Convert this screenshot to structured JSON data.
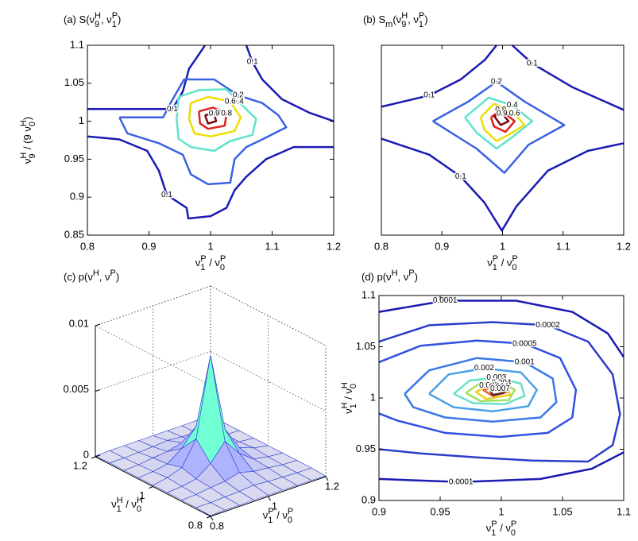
{
  "chart_data": [
    {
      "type": "contour",
      "title": [
        {
          "text": "(a) S(ν"
        },
        {
          "text": "9",
          "pos": "sub"
        },
        {
          "text": "H",
          "pos": "sup"
        },
        {
          "text": ", ν"
        },
        {
          "text": "1",
          "pos": "sub"
        },
        {
          "text": "P",
          "pos": "sup"
        },
        {
          "text": ")"
        }
      ],
      "xlabel": [
        {
          "text": "ν"
        },
        {
          "text": "1",
          "pos": "sub"
        },
        {
          "text": "P",
          "pos": "sup"
        },
        {
          "text": " / ν"
        },
        {
          "text": "0",
          "pos": "sub"
        },
        {
          "text": "P",
          "pos": "sup"
        }
      ],
      "ylabel": [
        {
          "text": "ν"
        },
        {
          "text": "9",
          "pos": "sub"
        },
        {
          "text": "H",
          "pos": "sup"
        },
        {
          "text": " / (9 ν"
        },
        {
          "text": "0",
          "pos": "sub"
        },
        {
          "text": "H",
          "pos": "sup"
        },
        {
          "text": ")"
        }
      ],
      "xlim": [
        0.8,
        1.2
      ],
      "ylim": [
        0.85,
        1.1
      ],
      "xticks": [
        0.8,
        0.9,
        1,
        1.1,
        1.2
      ],
      "yticks": [
        0.85,
        0.9,
        0.95,
        1,
        1.05,
        1.1
      ],
      "contours": [
        {
          "level": 0.1,
          "color": "#1a1ab4",
          "x": [
            0.8,
            0.938,
            0.955,
            0.965,
            0.987,
            0.991
          ],
          "y": [
            1.016,
            1.016,
            1.039,
            1.069,
            1.095,
            1.1
          ]
        },
        {
          "level": 0.1,
          "color": "#1a1ab4",
          "x": [
            1.058,
            1.068,
            1.084,
            1.116,
            1.161,
            1.2
          ],
          "y": [
            1.1,
            1.078,
            1.055,
            1.029,
            1.011,
            1.0
          ]
        },
        {
          "level": 0.1,
          "color": "#1a1ab4",
          "x": [
            0.8,
            0.852,
            0.897,
            0.916,
            0.929,
            0.961,
            0.964,
            1.0,
            1.026,
            1.039,
            1.058,
            1.09,
            1.135,
            1.2
          ],
          "y": [
            0.98,
            0.976,
            0.961,
            0.935,
            0.903,
            0.886,
            0.872,
            0.875,
            0.886,
            0.909,
            0.927,
            0.95,
            0.966,
            0.966
          ]
        },
        {
          "level": 0.2,
          "color": "#3a62e0",
          "x": [
            0.852,
            0.923,
            0.935,
            0.957,
            1.006,
            1.045,
            1.084,
            1.11,
            1.123,
            1.084,
            1.058,
            1.039,
            1.032,
            0.996,
            0.968,
            0.955,
            0.916,
            0.865,
            0.852
          ],
          "y": [
            1.005,
            1.005,
            1.024,
            1.055,
            1.055,
            1.034,
            1.024,
            1.008,
            0.992,
            0.976,
            0.966,
            0.95,
            0.919,
            0.917,
            0.93,
            0.956,
            0.971,
            0.984,
            1.005
          ]
        },
        {
          "level": 0.4,
          "color": "#5fe3cc",
          "x": [
            0.948,
            0.981,
            1.026,
            1.045,
            1.074,
            1.068,
            1.032,
            1.006,
            0.968,
            0.948,
            0.945,
            0.948
          ],
          "y": [
            1.032,
            1.041,
            1.042,
            1.026,
            1.003,
            0.982,
            0.974,
            0.961,
            0.966,
            0.977,
            1.003,
            1.032
          ]
        },
        {
          "level": 0.6,
          "color": "#ecdf00",
          "x": [
            0.968,
            0.996,
            1.032,
            1.049,
            1.039,
            1.0,
            0.974,
            0.965,
            0.968
          ],
          "y": [
            1.024,
            1.032,
            1.026,
            1.005,
            0.987,
            0.98,
            0.984,
            1.003,
            1.024
          ]
        },
        {
          "level": 0.8,
          "color": "#e02020",
          "x": [
            0.981,
            1.004,
            1.026,
            1.023,
            0.996,
            0.983,
            0.981
          ],
          "y": [
            1.013,
            1.018,
            1.01,
            0.994,
            0.99,
            0.997,
            1.013
          ]
        },
        {
          "level": 0.9,
          "color": "#7a0a0a",
          "x": [
            0.991,
            1.006,
            1.009,
            0.996,
            0.991
          ],
          "y": [
            1.008,
            1.01,
            1.0,
            0.997,
            1.008
          ]
        }
      ]
    },
    {
      "type": "contour",
      "title": [
        {
          "text": "(b) S"
        },
        {
          "text": "m",
          "pos": "sub"
        },
        {
          "text": "(ν"
        },
        {
          "text": "9",
          "pos": "sub"
        },
        {
          "text": "H",
          "pos": "sup"
        },
        {
          "text": ", ν"
        },
        {
          "text": "1",
          "pos": "sub"
        },
        {
          "text": "P",
          "pos": "sup"
        },
        {
          "text": ")"
        }
      ],
      "xlabel": [
        {
          "text": "ν"
        },
        {
          "text": "1",
          "pos": "sub"
        },
        {
          "text": "P",
          "pos": "sup"
        },
        {
          "text": " / ν"
        },
        {
          "text": "0",
          "pos": "sub"
        },
        {
          "text": "P",
          "pos": "sup"
        }
      ],
      "xlim": [
        0.8,
        1.2
      ],
      "ylim": [
        0.85,
        1.1
      ],
      "xticks": [
        0.8,
        0.9,
        1,
        1.1,
        1.2
      ],
      "contours": [
        {
          "level": 0.1,
          "color": "#1a1ab4",
          "x": [
            0.8,
            0.879,
            0.931,
            0.971,
            0.99
          ],
          "y": [
            1.019,
            1.034,
            1.055,
            1.081,
            1.1
          ]
        },
        {
          "level": 0.1,
          "color": "#1a1ab4",
          "x": [
            1.016,
            1.049,
            1.115,
            1.2
          ],
          "y": [
            1.1,
            1.076,
            1.045,
            1.015
          ]
        },
        {
          "level": 0.1,
          "color": "#1a1ab4",
          "x": [
            0.8,
            0.879,
            0.931,
            0.97,
            0.999,
            1.023,
            1.075,
            1.141,
            1.2
          ],
          "y": [
            0.977,
            0.956,
            0.927,
            0.893,
            0.856,
            0.888,
            0.935,
            0.961,
            0.971
          ]
        },
        {
          "level": 0.2,
          "color": "#3a62e0",
          "x": [
            0.885,
            0.944,
            0.99,
            1.036,
            1.102,
            1.043,
            1.003,
            0.957,
            0.885
          ],
          "y": [
            1.0,
            1.026,
            1.052,
            1.026,
            0.995,
            0.969,
            0.932,
            0.964,
            1.0
          ]
        },
        {
          "level": 0.4,
          "color": "#5fe3cc",
          "x": [
            0.938,
            0.977,
            1.016,
            1.049,
            1.016,
            0.99,
            0.957,
            0.938
          ],
          "y": [
            1.005,
            1.031,
            1.021,
            1.0,
            0.979,
            0.964,
            0.985,
            1.005
          ]
        },
        {
          "level": 0.6,
          "color": "#ecdf00",
          "x": [
            0.964,
            0.986,
            1.02,
            1.036,
            1.01,
            0.99,
            0.97,
            0.964
          ],
          "y": [
            1.005,
            1.023,
            1.01,
            0.995,
            0.982,
            0.974,
            0.989,
            1.005
          ]
        },
        {
          "level": 0.8,
          "color": "#e02020",
          "x": [
            0.981,
            0.997,
            1.02,
            1.005,
            0.986,
            0.981
          ],
          "y": [
            1.005,
            1.015,
            1.0,
            0.986,
            0.993,
            1.005
          ]
        },
        {
          "level": 0.9,
          "color": "#7a0a0a",
          "x": [
            0.986,
            0.999,
            1.01,
            0.997,
            0.986
          ],
          "y": [
            1.007,
            1.01,
            1.0,
            0.995,
            1.007
          ]
        }
      ]
    },
    {
      "type": "surface",
      "title": [
        {
          "text": "(c) p(ν"
        },
        {
          "text": "H",
          "pos": "sup"
        },
        {
          "text": ", ν"
        },
        {
          "text": "P",
          "pos": "sup"
        },
        {
          "text": ")"
        }
      ],
      "xlabel": [
        {
          "text": "ν"
        },
        {
          "text": "1",
          "pos": "sub"
        },
        {
          "text": "P",
          "pos": "sup"
        },
        {
          "text": " / ν"
        },
        {
          "text": "0",
          "pos": "sub"
        },
        {
          "text": "P",
          "pos": "sup"
        }
      ],
      "ylabel": [
        {
          "text": "ν"
        },
        {
          "text": "1",
          "pos": "sub"
        },
        {
          "text": "H",
          "pos": "sup"
        },
        {
          "text": "  /  ν"
        },
        {
          "text": "0",
          "pos": "sub"
        },
        {
          "text": "H",
          "pos": "sup"
        }
      ],
      "x": [
        0.8,
        0.85,
        0.9,
        0.95,
        1,
        1.05,
        1.1,
        1.15,
        1.2
      ],
      "y": [
        0.8,
        0.85,
        0.9,
        0.95,
        1,
        1.05,
        1.1,
        1.15,
        1.2
      ],
      "z": [
        [
          5e-05,
          0.0001,
          0.0001,
          0.0001,
          0.0001,
          0.0001,
          0.0001,
          0.0001,
          5e-05
        ],
        [
          0.0001,
          0.0001,
          0.00015,
          0.0002,
          0.0003,
          0.0002,
          0.00015,
          0.0001,
          0.0001
        ],
        [
          0.0001,
          0.00015,
          0.0003,
          0.0004,
          0.0007,
          0.0004,
          0.0003,
          0.00015,
          0.0001
        ],
        [
          0.0001,
          0.0002,
          0.0004,
          0.0012,
          0.0025,
          0.0012,
          0.0004,
          0.0002,
          0.0001
        ],
        [
          0.0001,
          0.0003,
          0.0007,
          0.0025,
          0.0085,
          0.0025,
          0.0007,
          0.0003,
          0.0001
        ],
        [
          0.0001,
          0.0002,
          0.0004,
          0.0012,
          0.0025,
          0.0012,
          0.0004,
          0.0002,
          0.0001
        ],
        [
          0.0001,
          0.00015,
          0.0003,
          0.0004,
          0.0007,
          0.0004,
          0.0003,
          0.00015,
          0.0001
        ],
        [
          0.0001,
          0.0001,
          0.00015,
          0.0002,
          0.0003,
          0.0002,
          0.00015,
          0.0001,
          0.0001
        ],
        [
          5e-05,
          0.0001,
          0.0001,
          0.0001,
          0.0001,
          0.0001,
          0.0001,
          0.0001,
          5e-05
        ]
      ],
      "xlim": [
        0.8,
        1.2
      ],
      "ylim": [
        0.8,
        1.2
      ],
      "zlim": [
        0,
        0.01
      ],
      "xticks": [
        0.8,
        1,
        1.2
      ],
      "yticks": [
        0.8,
        1,
        1.2
      ],
      "zticks": [
        0,
        0.005,
        0.01
      ]
    },
    {
      "type": "contour",
      "title": [
        {
          "text": "(d) p(ν"
        },
        {
          "text": "H",
          "pos": "sup"
        },
        {
          "text": ", ν"
        },
        {
          "text": "P",
          "pos": "sup"
        },
        {
          "text": ")"
        }
      ],
      "xlabel": [
        {
          "text": "ν"
        },
        {
          "text": "1",
          "pos": "sub"
        },
        {
          "text": "P",
          "pos": "sup"
        },
        {
          "text": " / ν"
        },
        {
          "text": "0",
          "pos": "sub"
        },
        {
          "text": "P",
          "pos": "sup"
        }
      ],
      "ylabel": [
        {
          "text": "ν"
        },
        {
          "text": "1",
          "pos": "sub"
        },
        {
          "text": "H",
          "pos": "sup"
        },
        {
          "text": " / ν"
        },
        {
          "text": "0",
          "pos": "sub"
        },
        {
          "text": "H",
          "pos": "sup"
        }
      ],
      "xlim": [
        0.9,
        1.1
      ],
      "ylim": [
        0.9,
        1.1
      ],
      "xticks": [
        0.9,
        0.95,
        1,
        1.05,
        1.1
      ],
      "yticks": [
        0.9,
        0.95,
        1,
        1.05,
        1.1
      ],
      "contours": [
        {
          "level": 0.0001,
          "color": "#1a1ab4",
          "x": [
            0.9,
            0.954,
            1.012,
            1.058,
            1.087,
            1.1
          ],
          "y": [
            1.084,
            1.095,
            1.095,
            1.084,
            1.063,
            1.04
          ]
        },
        {
          "level": 0.0001,
          "color": "#1a1ab4",
          "x": [
            0.9,
            0.967,
            1.032,
            1.074,
            1.1
          ],
          "y": [
            0.921,
            0.918,
            0.921,
            0.931,
            0.947
          ]
        },
        {
          "level": 0.0002,
          "color": "#2a3ec8",
          "x": [
            0.9,
            0.941,
            0.993,
            1.038,
            1.071,
            1.091,
            1.097,
            1.091,
            1.071,
            1.025,
            0.98,
            0.934,
            0.9
          ],
          "y": [
            1.055,
            1.071,
            1.074,
            1.071,
            1.055,
            1.023,
            0.984,
            0.954,
            0.938,
            0.939,
            0.942,
            0.946,
            0.95
          ]
        },
        {
          "level": 0.0005,
          "color": "#3050e0",
          "x": [
            0.9,
            0.934,
            0.98,
            1.019,
            1.048,
            1.061,
            1.058,
            1.038,
            0.999,
            0.954,
            0.915,
            0.9
          ],
          "y": [
            1.035,
            1.051,
            1.056,
            1.053,
            1.039,
            1.008,
            0.981,
            0.966,
            0.962,
            0.966,
            0.978,
            0.985
          ]
        },
        {
          "level": 0.001,
          "color": "#3a78e8",
          "x": [
            0.921,
            0.941,
            0.98,
            1.019,
            1.042,
            1.045,
            1.032,
            0.993,
            0.954,
            0.928,
            0.921
          ],
          "y": [
            1.004,
            1.027,
            1.039,
            1.035,
            1.019,
            0.996,
            0.981,
            0.977,
            0.981,
            0.991,
            1.004
          ]
        },
        {
          "level": 0.002,
          "color": "#4aa0e8",
          "x": [
            0.941,
            0.957,
            0.986,
            1.016,
            1.029,
            1.022,
            0.993,
            0.961,
            0.941
          ],
          "y": [
            1.004,
            1.023,
            1.029,
            1.025,
            1.008,
            0.992,
            0.987,
            0.991,
            1.004
          ]
        },
        {
          "level": 0.003,
          "color": "#6ae0c8",
          "x": [
            0.961,
            0.974,
            0.996,
            1.016,
            1.019,
            1.003,
            0.977,
            0.961
          ],
          "y": [
            1.004,
            1.017,
            1.02,
            1.014,
            1.002,
            0.994,
            0.995,
            1.004
          ]
        },
        {
          "level": 0.004,
          "color": "#a0e060",
          "x": [
            0.971,
            0.982,
            1.0,
            1.011,
            1.006,
            0.983,
            0.971
          ],
          "y": [
            1.005,
            1.014,
            1.015,
            1.008,
            0.998,
            0.997,
            1.005
          ]
        },
        {
          "level": 0.005,
          "color": "#e8d020",
          "x": [
            0.979,
            0.99,
            1.005,
            1.007,
            0.988,
            0.979
          ],
          "y": [
            1.006,
            1.012,
            1.011,
            1.003,
            0.999,
            1.006
          ]
        },
        {
          "level": 0.006,
          "color": "#e06020",
          "x": [
            0.985,
            0.998,
            1.005,
            0.993,
            0.985
          ],
          "y": [
            1.008,
            1.011,
            1.006,
            1.002,
            1.008
          ]
        },
        {
          "level": 0.007,
          "color": "#602020",
          "x": [
            0.991,
            0.999,
            1.002,
            0.993,
            0.991
          ],
          "y": [
            1.007,
            1.009,
            1.005,
            1.003,
            1.007
          ]
        }
      ]
    }
  ]
}
